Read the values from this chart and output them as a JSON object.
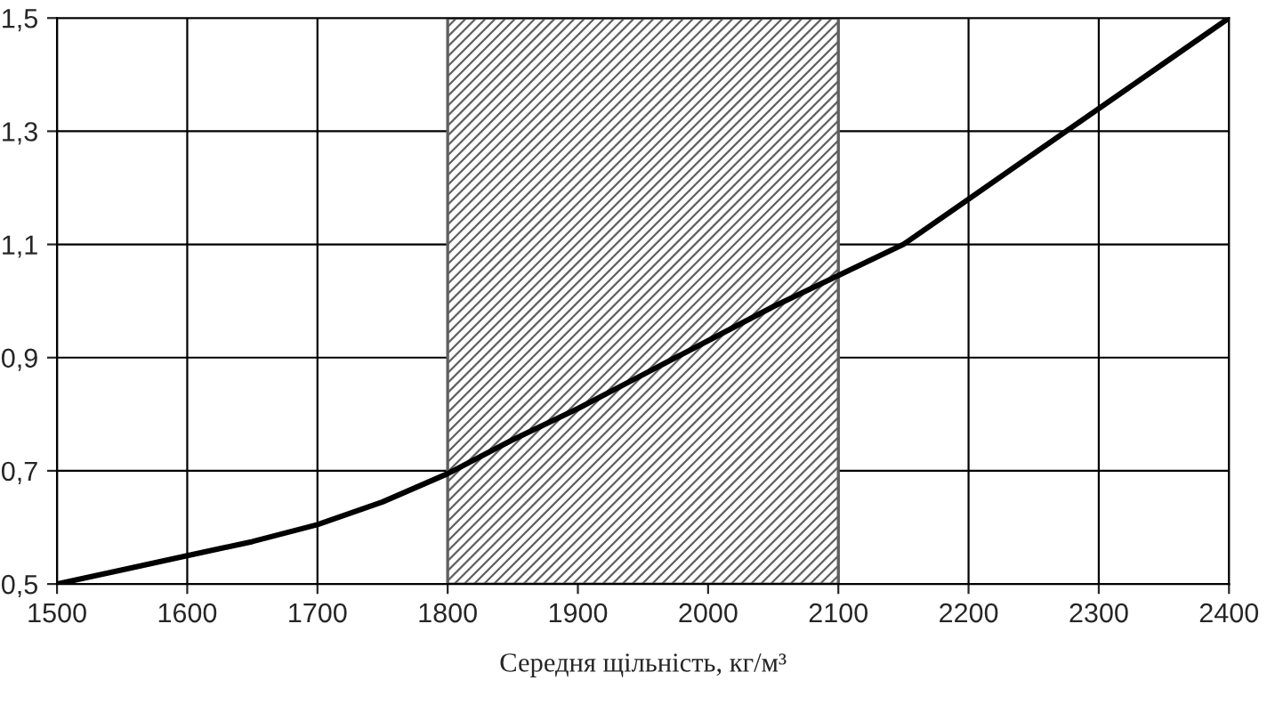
{
  "chart_data": {
    "type": "line",
    "xlabel": "Середня щільність, кг/м³",
    "x": [
      1500,
      1550,
      1600,
      1650,
      1700,
      1750,
      1800,
      1850,
      1900,
      1950,
      2000,
      2050,
      2100,
      2150,
      2200,
      2250,
      2300,
      2350,
      2400
    ],
    "series": [
      {
        "color": "#000000",
        "values": [
          0.5,
          0.525,
          0.55,
          0.575,
          0.605,
          0.645,
          0.695,
          0.755,
          0.81,
          0.87,
          0.93,
          0.99,
          1.045,
          1.1,
          1.18,
          1.26,
          1.34,
          1.42,
          1.5
        ]
      }
    ],
    "xlim": [
      1500,
      2400
    ],
    "xticks": [
      1500,
      1600,
      1700,
      1800,
      1900,
      2000,
      2100,
      2200,
      2300,
      2400
    ],
    "ylim": [
      0.5,
      1.5
    ],
    "yticks": [
      {
        "value": 0.5,
        "label": "0,5"
      },
      {
        "value": 0.7,
        "label": "0,7"
      },
      {
        "value": 0.9,
        "label": "0,9"
      },
      {
        "value": 1.1,
        "label": "1,1"
      },
      {
        "value": 1.3,
        "label": "1,3"
      },
      {
        "value": 1.5,
        "label": "1,5"
      }
    ],
    "bands": [
      {
        "axis": "x",
        "from": 1800,
        "to": 2100,
        "color": "#606060"
      }
    ],
    "grid": true,
    "marker": "none",
    "line_style": "solid"
  }
}
